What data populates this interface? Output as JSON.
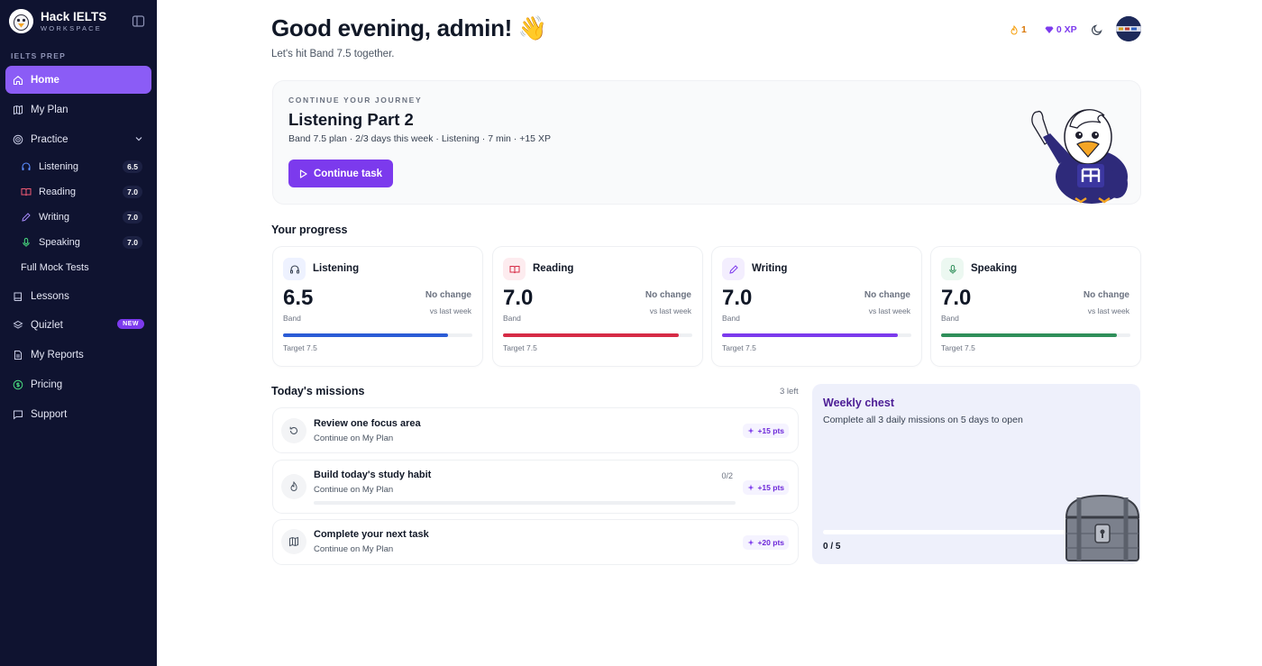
{
  "brand": {
    "title": "Hack IELTS",
    "subtitle": "WORKSPACE"
  },
  "sidebar": {
    "section_label": "IELTS PREP",
    "items": [
      {
        "label": "Home"
      },
      {
        "label": "My Plan"
      },
      {
        "label": "Practice"
      },
      {
        "label": "Lessons"
      },
      {
        "label": "Quizlet",
        "badge": "NEW"
      },
      {
        "label": "My Reports"
      },
      {
        "label": "Pricing"
      },
      {
        "label": "Support"
      }
    ],
    "practice": [
      {
        "label": "Listening",
        "badge": "6.5"
      },
      {
        "label": "Reading",
        "badge": "7.0"
      },
      {
        "label": "Writing",
        "badge": "7.0"
      },
      {
        "label": "Speaking",
        "badge": "7.0"
      },
      {
        "label": "Full Mock Tests"
      }
    ]
  },
  "header": {
    "greeting": "Good evening, admin! 👋",
    "subtitle": "Let's hit Band 7.5 together.",
    "streak": "1",
    "xp": "0 XP"
  },
  "hero": {
    "eyebrow": "CONTINUE YOUR JOURNEY",
    "title": "Listening Part 2",
    "meta": "Band 7.5 plan · 2/3 days this week · Listening · 7 min · +15 XP",
    "cta": "Continue task"
  },
  "progress": {
    "title": "Your progress",
    "cards": [
      {
        "name": "Listening",
        "score": "6.5",
        "band": "Band",
        "change": "No change",
        "vs": "vs last week",
        "target": "Target 7.5",
        "progress": 0.87,
        "color": "#2b5cd6",
        "icon_bg": "#eef2ff",
        "icon": "headphones-icon"
      },
      {
        "name": "Reading",
        "score": "7.0",
        "band": "Band",
        "change": "No change",
        "vs": "vs last week",
        "target": "Target 7.5",
        "progress": 0.93,
        "color": "#d62b46",
        "icon_bg": "#fdecef",
        "icon": "book-open-icon"
      },
      {
        "name": "Writing",
        "score": "7.0",
        "band": "Band",
        "change": "No change",
        "vs": "vs last week",
        "target": "Target 7.5",
        "progress": 0.93,
        "color": "#7c3aed",
        "icon_bg": "#f3eefe",
        "icon": "pen-icon"
      },
      {
        "name": "Speaking",
        "score": "7.0",
        "band": "Band",
        "change": "No change",
        "vs": "vs last week",
        "target": "Target 7.5",
        "progress": 0.93,
        "color": "#2f8f5a",
        "icon_bg": "#ecf8f1",
        "icon": "mic-icon"
      }
    ]
  },
  "missions": {
    "title": "Today's missions",
    "left": "3 left",
    "items": [
      {
        "title": "Review one focus area",
        "subtitle": "Continue on My Plan",
        "points": "+15 pts",
        "icon": "refresh-icon"
      },
      {
        "title": "Build today's study habit",
        "subtitle": "Continue on My Plan",
        "points": "+15 pts",
        "progress": "0/2",
        "icon": "flame-icon"
      },
      {
        "title": "Complete your next task",
        "subtitle": "Continue on My Plan",
        "points": "+20 pts",
        "icon": "map-icon"
      }
    ]
  },
  "chest": {
    "title": "Weekly chest",
    "description": "Complete all 3 daily missions on 5 days to open",
    "count": "0 / 5"
  },
  "colors": {
    "accent": "#7c3aed",
    "sidebar_bg": "#0f1330",
    "active_item": "#8b5cf6"
  }
}
